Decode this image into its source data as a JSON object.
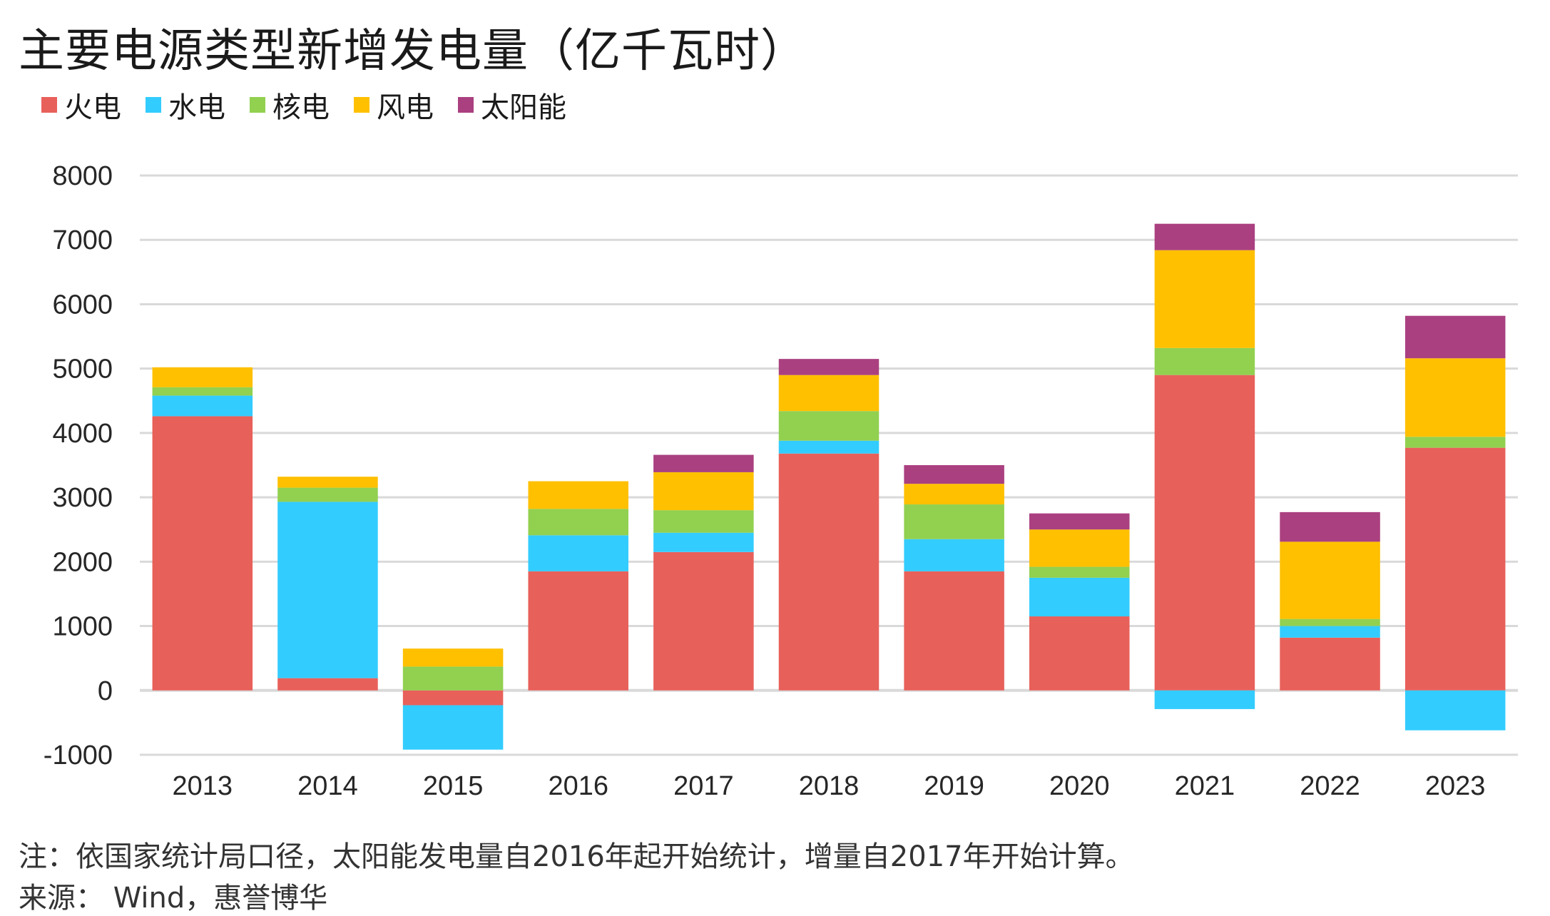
{
  "title": "主要电源类型新增发电量（亿千瓦时）",
  "note": "注：依国家统计局口径，太阳能发电量自2016年起开始统计，增量自2017年开始计算。",
  "source": "来源： Wind，惠誉博华",
  "colors": {
    "火电": "#E8605A",
    "水电": "#33CCFF",
    "核电": "#92D050",
    "风电": "#FFC000",
    "太阳能": "#AA4080",
    "grid": "#D9D9D9"
  },
  "chart_data": {
    "type": "bar",
    "stacked": true,
    "categories": [
      "2013",
      "2014",
      "2015",
      "2016",
      "2017",
      "2018",
      "2019",
      "2020",
      "2021",
      "2022",
      "2023"
    ],
    "series": [
      {
        "name": "火电",
        "values": [
          4260,
          190,
          -230,
          1850,
          2150,
          3680,
          1850,
          1150,
          4900,
          820,
          3770
        ]
      },
      {
        "name": "水电",
        "values": [
          320,
          2740,
          -690,
          560,
          300,
          200,
          500,
          600,
          -290,
          180,
          -620
        ]
      },
      {
        "name": "核电",
        "values": [
          130,
          220,
          370,
          410,
          350,
          460,
          540,
          170,
          420,
          110,
          170
        ]
      },
      {
        "name": "风电",
        "values": [
          310,
          170,
          280,
          430,
          590,
          560,
          320,
          580,
          1520,
          1200,
          1220
        ]
      },
      {
        "name": "太阳能",
        "values": [
          0,
          0,
          0,
          0,
          270,
          250,
          290,
          250,
          410,
          460,
          660
        ]
      }
    ],
    "ylim": [
      -1000,
      8000
    ],
    "yticks": [
      -1000,
      0,
      1000,
      2000,
      3000,
      4000,
      5000,
      6000,
      7000,
      8000
    ],
    "legend_position": "top-left",
    "grid": true
  }
}
